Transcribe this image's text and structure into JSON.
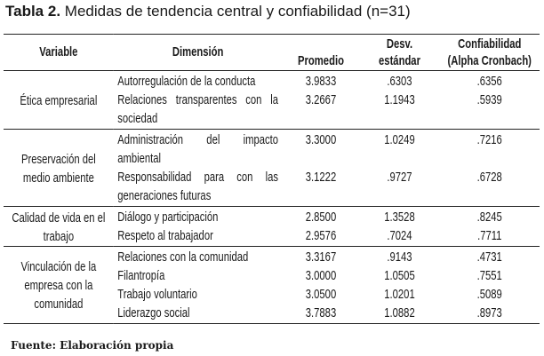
{
  "title": {
    "label": "Tabla 2.",
    "text": "Medidas de tendencia central y confiabilidad (n=31)"
  },
  "headers": {
    "variable": "Variable",
    "dimension": "Dimensión",
    "mean": "Promedio",
    "sd": "Desv. estándar",
    "alpha": "Confiabilidad (Alpha Cronbach)"
  },
  "groups": [
    {
      "variable": "Ética empresarial",
      "rows": [
        {
          "dimension": "Autorregulación de la con­ducta",
          "mean": "3.9833",
          "sd": ".6303",
          "alpha": ".6356"
        },
        {
          "dimension": "Relaciones transparentes con la sociedad",
          "mean": "3.2667",
          "sd": "1.1943",
          "alpha": ".5939"
        }
      ]
    },
    {
      "variable": "Preservación del medio ambiente",
      "rows": [
        {
          "dimension": "Administración del impacto ambiental",
          "mean": "3.3000",
          "sd": "1.0249",
          "alpha": ".7216"
        },
        {
          "dimension": "Responsabilidad para con las generaciones futuras",
          "mean": "3.1222",
          "sd": ".9727",
          "alpha": ".6728"
        }
      ]
    },
    {
      "variable": "Calidad de vida en el trabajo",
      "rows": [
        {
          "dimension": "Diálogo y participación",
          "mean": "2.8500",
          "sd": "1.3528",
          "alpha": ".8245"
        },
        {
          "dimension": "Respeto al trabajador",
          "mean": "2.9576",
          "sd": ".7024",
          "alpha": ".7711"
        }
      ]
    },
    {
      "variable": "Vinculación de la empresa con la comunidad",
      "rows": [
        {
          "dimension": "Relaciones con la comunidad",
          "mean": "3.3167",
          "sd": ".9143",
          "alpha": ".4731"
        },
        {
          "dimension": "Filantropía",
          "mean": "3.0000",
          "sd": "1.0505",
          "alpha": ".7551"
        },
        {
          "dimension": "Trabajo voluntario",
          "mean": "3.0500",
          "sd": "1.0201",
          "alpha": ".5089"
        },
        {
          "dimension": "Liderazgo social",
          "mean": "3.7883",
          "sd": "1.0882",
          "alpha": ".8973"
        }
      ]
    }
  ],
  "footer": "Fuente: Elaboración propia"
}
